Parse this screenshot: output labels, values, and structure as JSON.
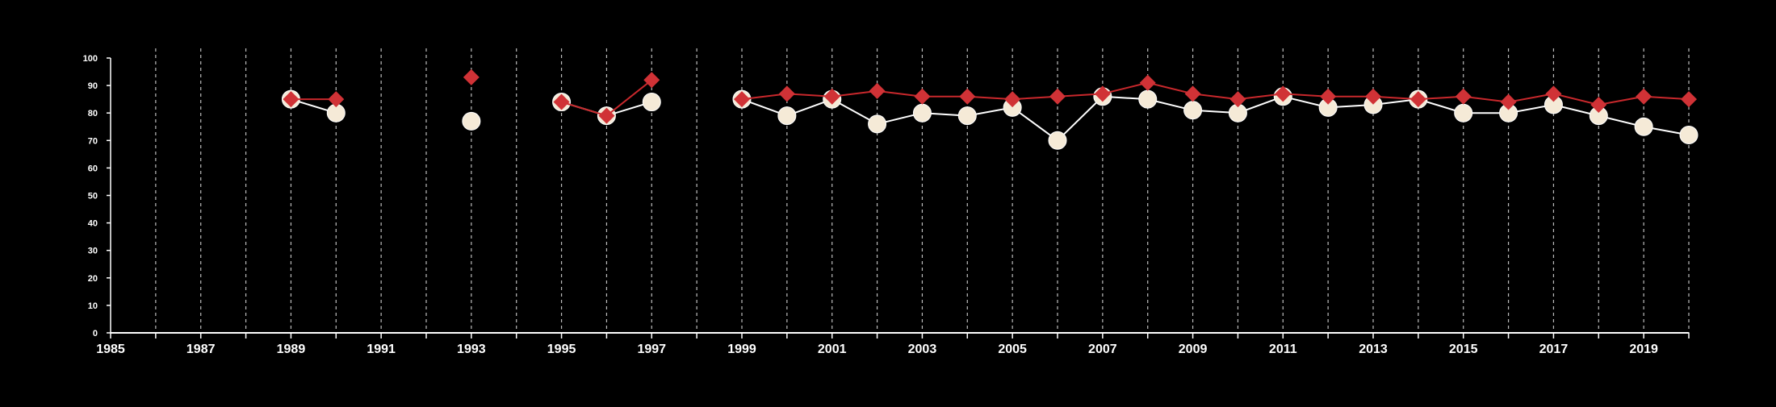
{
  "chart_data": {
    "type": "line",
    "title": "",
    "xlabel": "",
    "ylabel": "",
    "xlim": [
      1985,
      2020
    ],
    "ylim": [
      0,
      100
    ],
    "x_ticks": [
      1985,
      1987,
      1989,
      1991,
      1993,
      1995,
      1997,
      1999,
      2001,
      2003,
      2005,
      2007,
      2009,
      2011,
      2013,
      2015,
      2017,
      2019
    ],
    "x_tick_labels": [
      "1985",
      "1987",
      "1989",
      "1991",
      "1993",
      "1995",
      "1997",
      "1999",
      "2001",
      "2003",
      "2005",
      "2007",
      "2009",
      "2011",
      "2013",
      "2015",
      "2017",
      "2019"
    ],
    "y_ticks": [
      0,
      10,
      20,
      30,
      40,
      50,
      60,
      70,
      80,
      90,
      100
    ],
    "y_tick_labels": [
      "0",
      "10",
      "20",
      "30",
      "40",
      "50",
      "60",
      "70",
      "80",
      "90",
      "100"
    ],
    "vertical_gridlines": "dashed, every year",
    "legend": "none",
    "series": [
      {
        "marker": "circle",
        "color": "#f5ead7",
        "line_color": "#ffffff",
        "points": [
          {
            "x": 1989,
            "y": 85
          },
          {
            "x": 1990,
            "y": 80
          },
          {
            "x": 1993,
            "y": 77
          },
          {
            "x": 1995,
            "y": 84
          },
          {
            "x": 1996,
            "y": 79
          },
          {
            "x": 1997,
            "y": 84
          },
          {
            "x": 1999,
            "y": 85
          },
          {
            "x": 2000,
            "y": 79
          },
          {
            "x": 2001,
            "y": 85
          },
          {
            "x": 2002,
            "y": 76
          },
          {
            "x": 2003,
            "y": 80
          },
          {
            "x": 2004,
            "y": 79
          },
          {
            "x": 2005,
            "y": 82
          },
          {
            "x": 2006,
            "y": 70
          },
          {
            "x": 2007,
            "y": 86
          },
          {
            "x": 2008,
            "y": 85
          },
          {
            "x": 2009,
            "y": 81
          },
          {
            "x": 2010,
            "y": 80
          },
          {
            "x": 2011,
            "y": 86
          },
          {
            "x": 2012,
            "y": 82
          },
          {
            "x": 2013,
            "y": 83
          },
          {
            "x": 2014,
            "y": 85
          },
          {
            "x": 2015,
            "y": 80
          },
          {
            "x": 2016,
            "y": 80
          },
          {
            "x": 2017,
            "y": 83
          },
          {
            "x": 2018,
            "y": 79
          },
          {
            "x": 2019,
            "y": 75
          },
          {
            "x": 2020,
            "y": 72
          }
        ]
      },
      {
        "marker": "diamond",
        "color": "#d03236",
        "line_color": "#c8282c",
        "points": [
          {
            "x": 1989,
            "y": 85
          },
          {
            "x": 1990,
            "y": 85
          },
          {
            "x": 1993,
            "y": 93
          },
          {
            "x": 1995,
            "y": 84
          },
          {
            "x": 1996,
            "y": 79
          },
          {
            "x": 1997,
            "y": 92
          },
          {
            "x": 1999,
            "y": 85
          },
          {
            "x": 2000,
            "y": 87
          },
          {
            "x": 2001,
            "y": 86
          },
          {
            "x": 2002,
            "y": 88
          },
          {
            "x": 2003,
            "y": 86
          },
          {
            "x": 2004,
            "y": 86
          },
          {
            "x": 2005,
            "y": 85
          },
          {
            "x": 2006,
            "y": 86
          },
          {
            "x": 2007,
            "y": 87
          },
          {
            "x": 2008,
            "y": 91
          },
          {
            "x": 2009,
            "y": 87
          },
          {
            "x": 2010,
            "y": 85
          },
          {
            "x": 2011,
            "y": 87
          },
          {
            "x": 2012,
            "y": 86
          },
          {
            "x": 2013,
            "y": 86
          },
          {
            "x": 2014,
            "y": 85
          },
          {
            "x": 2015,
            "y": 86
          },
          {
            "x": 2016,
            "y": 84
          },
          {
            "x": 2017,
            "y": 87
          },
          {
            "x": 2018,
            "y": 83
          },
          {
            "x": 2019,
            "y": 86
          },
          {
            "x": 2020,
            "y": 85
          }
        ]
      }
    ]
  }
}
